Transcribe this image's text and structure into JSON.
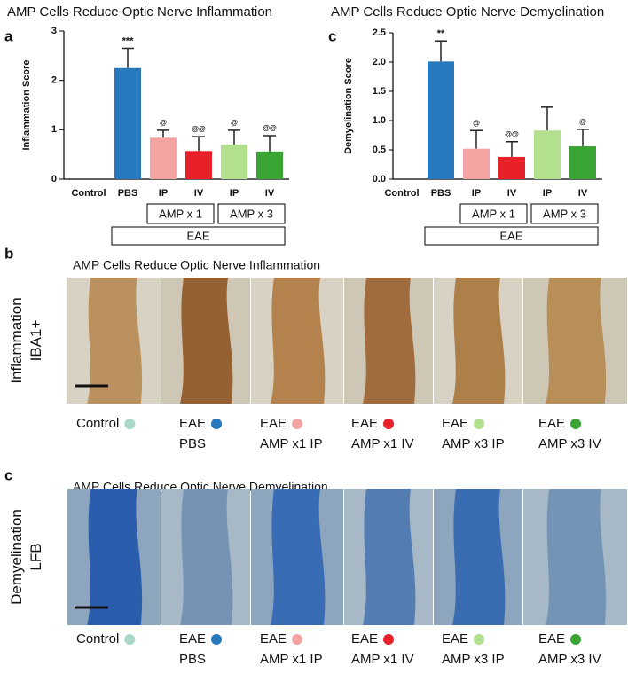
{
  "chart_data": [
    {
      "type": "bar",
      "letter": "a",
      "title": "AMP Cells Reduce Optic Nerve Inflammation",
      "ylabel": "Inflammation Score",
      "categories": [
        "Control",
        "PBS",
        "IP",
        "IV",
        "IP",
        "IV"
      ],
      "values": [
        0,
        2.25,
        0.84,
        0.57,
        0.7,
        0.56
      ],
      "errors": [
        null,
        0.4,
        0.15,
        0.29,
        0.29,
        0.32
      ],
      "annotations": [
        null,
        "***",
        "@",
        "@@",
        "@",
        "@@"
      ],
      "colors": [
        null,
        "#2878bd",
        "#f4a3a3",
        "#e8202a",
        "#b3e08f",
        "#3aa535"
      ],
      "groups": [
        "AMP x 1",
        "AMP x 3",
        "EAE"
      ],
      "ylim": [
        0,
        3
      ],
      "yticks": [
        0,
        1,
        2,
        3
      ]
    },
    {
      "type": "bar",
      "letter": "c",
      "title": "AMP Cells Reduce Optic Nerve Demyelination",
      "ylabel": "Demyelination Score",
      "categories": [
        "Control",
        "PBS",
        "IP",
        "IV",
        "IP",
        "IV"
      ],
      "values": [
        0,
        2.01,
        0.52,
        0.38,
        0.83,
        0.56
      ],
      "errors": [
        null,
        0.35,
        0.31,
        0.26,
        0.4,
        0.29
      ],
      "annotations": [
        null,
        "**",
        "@",
        "@@",
        null,
        "@"
      ],
      "colors": [
        null,
        "#2878bd",
        "#f4a3a3",
        "#e8202a",
        "#b3e08f",
        "#3aa535"
      ],
      "groups": [
        "AMP x 1",
        "AMP x 3",
        "EAE"
      ],
      "ylim": [
        0,
        2.5
      ],
      "yticks": [
        {
          "value": 0,
          "label": "0.0"
        },
        {
          "value": 0.5,
          "label": "0.5"
        },
        {
          "value": 1,
          "label": "1.0"
        },
        {
          "value": 1.5,
          "label": "1.5"
        },
        {
          "value": 2,
          "label": "2.0"
        },
        {
          "value": 2.5,
          "label": "2.5"
        }
      ]
    }
  ],
  "panels": [
    {
      "letter": "b",
      "title": "AMP Cells Reduce Optic Nerve Inflammation",
      "row_label": [
        "Inflammation",
        "IBA1+"
      ],
      "legend": [
        {
          "lines": [
            "Control"
          ],
          "color": "#a8d8c8"
        },
        {
          "lines": [
            "EAE",
            "PBS"
          ],
          "color": "#2878bd"
        },
        {
          "lines": [
            "EAE",
            "AMP x1 IP"
          ],
          "color": "#f4a3a3"
        },
        {
          "lines": [
            "EAE",
            "AMP x1 IV"
          ],
          "color": "#e8202a"
        },
        {
          "lines": [
            "EAE",
            "AMP x3 IP"
          ],
          "color": "#b3e08f"
        },
        {
          "lines": [
            "EAE",
            "AMP x3 IV"
          ],
          "color": "#3aa535"
        }
      ]
    },
    {
      "letter": "c",
      "title": "AMP Cells Reduce Optic Nerve Demyelination",
      "row_label": [
        "Demyelination",
        "LFB"
      ],
      "legend": [
        {
          "lines": [
            "Control"
          ],
          "color": "#a8d8c8"
        },
        {
          "lines": [
            "EAE",
            "PBS"
          ],
          "color": "#2878bd"
        },
        {
          "lines": [
            "EAE",
            "AMP x1 IP"
          ],
          "color": "#f4a3a3"
        },
        {
          "lines": [
            "EAE",
            "AMP x1 IV"
          ],
          "color": "#e8202a"
        },
        {
          "lines": [
            "EAE",
            "AMP x3 IP"
          ],
          "color": "#b3e08f"
        },
        {
          "lines": [
            "EAE",
            "AMP x3 IV"
          ],
          "color": "#3aa535"
        }
      ]
    }
  ]
}
